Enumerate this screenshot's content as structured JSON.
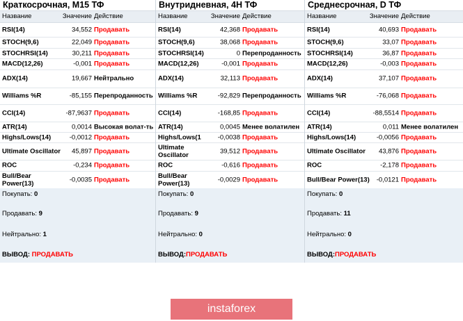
{
  "panels": [
    {
      "title": "Краткосрочная, M15 ТФ",
      "headers": {
        "name": "Название",
        "value": "Значение",
        "action": "Действие"
      },
      "rows": [
        {
          "name": "RSI(14)",
          "value": "34,552",
          "action": "Продавать",
          "red": true
        },
        {
          "name": "STOCH(9,6)",
          "value": "22,049",
          "action": "Продавать",
          "red": true
        },
        {
          "name": "STOCHRSI(14)",
          "value": "30,211",
          "action": "Продавать",
          "red": true
        },
        {
          "name": "MACD(12,26)",
          "value": "-0,001",
          "action": "Продавать",
          "red": true
        },
        {
          "name": "ADX(14)",
          "value": "19,667",
          "action": "Нейтрально",
          "red": false
        },
        {
          "name": "Williams %R",
          "value": "-85,155",
          "action": "Перепроданность",
          "red": false
        },
        {
          "name": "CCI(14)",
          "value": "-87,9637",
          "action": "Продавать",
          "red": true
        },
        {
          "name": "ATR(14)",
          "value": "0,0014",
          "action": "Высокая волат-ть",
          "red": false
        },
        {
          "name": "Highs/Lows(14)",
          "value": "-0,0012",
          "action": "Продавать",
          "red": true
        },
        {
          "name": "Ultimate Oscillator",
          "value": "45,897",
          "action": "Продавать",
          "red": true
        },
        {
          "name": "ROC",
          "value": "-0,234",
          "action": "Продавать",
          "red": true
        },
        {
          "name": "Bull/Bear Power(13)",
          "value": "-0,0035",
          "action": "Продавать",
          "red": true
        }
      ],
      "summary": {
        "buy_label": "Покупать:",
        "buy": "0",
        "sell_label": "Продавать:",
        "sell": "9",
        "neutral_label": "Нейтрально:",
        "neutral": "1",
        "conclusion_label": "ВЫВОД:",
        "conclusion": "ПРОДАВАТЬ"
      }
    },
    {
      "title": "Внутридневная, 4H ТФ",
      "headers": {
        "name": "Название",
        "value": "Значение",
        "action": "Действие"
      },
      "rows": [
        {
          "name": "RSI(14)",
          "value": "42,368",
          "action": "Продавать",
          "red": true
        },
        {
          "name": "STOCH(9,6)",
          "value": "38,068",
          "action": "Продавать",
          "red": true
        },
        {
          "name": "STOCHRSI(14)",
          "value": "0",
          "action": "Перепроданность",
          "red": false
        },
        {
          "name": "MACD(12,26)",
          "value": "-0,001",
          "action": "Продавать",
          "red": true
        },
        {
          "name": "ADX(14)",
          "value": "32,113",
          "action": "Продавать",
          "red": true
        },
        {
          "name": "Williams %R",
          "value": "-92,829",
          "action": "Перепроданность",
          "red": false
        },
        {
          "name": "CCI(14)",
          "value": "-168,85",
          "action": "Продавать",
          "red": true
        },
        {
          "name": "ATR(14)",
          "value": "0,0045",
          "action": "Менее волатилен",
          "red": false
        },
        {
          "name": "Highs/Lows(1",
          "value": "-0,0038",
          "action": "Продавать",
          "red": true
        },
        {
          "name": "Ultimate Oscillator",
          "value": "39,512",
          "action": "Продавать",
          "red": true
        },
        {
          "name": "ROC",
          "value": "-0,616",
          "action": "Продавать",
          "red": true
        },
        {
          "name": "Bull/Bear Power(13)",
          "value": "-0,0029",
          "action": "Продавать",
          "red": true
        }
      ],
      "summary": {
        "buy_label": "Покупать:",
        "buy": "0",
        "sell_label": "Продавать:",
        "sell": "9",
        "neutral_label": "Нейтрально:",
        "neutral": "0",
        "conclusion_label": "ВЫВОД:",
        "conclusion": "ПРОДАВАТЬ"
      }
    },
    {
      "title": "Среднесрочная, D ТФ",
      "headers": {
        "name": "Название",
        "value": "Значение",
        "action": "Действие"
      },
      "rows": [
        {
          "name": "RSI(14)",
          "value": "40,693",
          "action": "Продавать",
          "red": true
        },
        {
          "name": "STOCH(9,6)",
          "value": "33,07",
          "action": "Продавать",
          "red": true
        },
        {
          "name": "STOCHRSI(14)",
          "value": "36,87",
          "action": "Продавать",
          "red": true
        },
        {
          "name": "MACD(12,26)",
          "value": "-0,003",
          "action": "Продавать",
          "red": true
        },
        {
          "name": "ADX(14)",
          "value": "37,107",
          "action": "Продавать",
          "red": true
        },
        {
          "name": "Williams %R",
          "value": "-76,068",
          "action": "Продавать",
          "red": true
        },
        {
          "name": "CCI(14)",
          "value": "-88,5514",
          "action": "Продавать",
          "red": true
        },
        {
          "name": "ATR(14)",
          "value": "0,011",
          "action": "Менее волатилен",
          "red": false
        },
        {
          "name": "Highs/Lows(14)",
          "value": "-0,0056",
          "action": "Продавать",
          "red": true
        },
        {
          "name": "Ultimate Oscillator",
          "value": "43,876",
          "action": "Продавать",
          "red": true
        },
        {
          "name": "ROC",
          "value": "-2,178",
          "action": "Продавать",
          "red": true
        },
        {
          "name": "Bull/Bear Power(13)",
          "value": "-0,0121",
          "action": "Продавать",
          "red": true
        }
      ],
      "summary": {
        "buy_label": "Покупать:",
        "buy": "0",
        "sell_label": "Продавать:",
        "sell": "11",
        "neutral_label": "Нейтрально:",
        "neutral": "0",
        "conclusion_label": "ВЫВОД:",
        "conclusion": "ПРОДАВАТЬ"
      }
    }
  ],
  "watermark": "instaforex",
  "colors": {
    "sell": "#ff0000",
    "header_bg": "#e9eef3",
    "summary_bg": "#e9f0f6",
    "logo_bg": "#e8737a"
  }
}
